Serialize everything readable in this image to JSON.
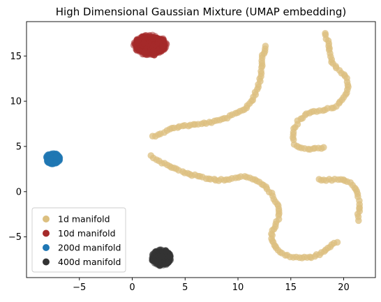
{
  "chart_data": {
    "type": "scatter",
    "title": "High Dimensional Gaussian Mixture (UMAP embedding)",
    "xlabel": "",
    "ylabel": "",
    "xlim": [
      -10,
      23
    ],
    "ylim": [
      -9.5,
      18.8
    ],
    "xticks": [
      -5,
      0,
      5,
      10,
      15,
      20
    ],
    "yticks": [
      -5,
      0,
      5,
      10,
      15
    ],
    "grid": false,
    "legend_position": "lower-left",
    "series": [
      {
        "name": "1d manifold",
        "color": "#DCBF7F",
        "kind": "curve",
        "segments": [
          [
            [
              1.9,
              6.1
            ],
            [
              3.0,
              6.6
            ],
            [
              4.0,
              7.1
            ],
            [
              5.0,
              7.3
            ],
            [
              6.0,
              7.4
            ],
            [
              7.0,
              7.6
            ],
            [
              8.0,
              7.8
            ],
            [
              9.0,
              8.2
            ],
            [
              10.0,
              8.7
            ],
            [
              10.8,
              9.3
            ],
            [
              11.4,
              10.2
            ],
            [
              11.8,
              11.3
            ],
            [
              12.1,
              12.5
            ],
            [
              12.3,
              13.7
            ],
            [
              12.3,
              14.8
            ],
            [
              12.5,
              15.6
            ],
            [
              12.6,
              16.1
            ]
          ],
          [
            [
              1.8,
              3.9
            ],
            [
              2.5,
              3.4
            ],
            [
              3.3,
              2.9
            ],
            [
              4.2,
              2.5
            ],
            [
              5.2,
              2.0
            ],
            [
              6.2,
              1.7
            ],
            [
              7.2,
              1.4
            ],
            [
              8.2,
              1.3
            ],
            [
              9.2,
              1.4
            ],
            [
              10.0,
              1.6
            ],
            [
              10.9,
              1.6
            ],
            [
              11.6,
              1.3
            ],
            [
              12.2,
              0.9
            ],
            [
              12.8,
              0.3
            ],
            [
              13.3,
              -0.5
            ],
            [
              13.7,
              -1.3
            ],
            [
              13.9,
              -2.1
            ],
            [
              13.8,
              -3.0
            ],
            [
              13.5,
              -3.8
            ],
            [
              13.2,
              -4.6
            ],
            [
              13.2,
              -5.4
            ],
            [
              13.5,
              -6.1
            ],
            [
              14.0,
              -6.7
            ],
            [
              14.7,
              -7.1
            ],
            [
              15.5,
              -7.3
            ],
            [
              16.3,
              -7.3
            ],
            [
              17.0,
              -7.2
            ],
            [
              17.7,
              -6.9
            ],
            [
              18.3,
              -6.4
            ],
            [
              18.9,
              -5.9
            ],
            [
              19.4,
              -5.6
            ]
          ],
          [
            [
              18.2,
              17.5
            ],
            [
              18.5,
              16.7
            ],
            [
              18.6,
              15.6
            ],
            [
              18.8,
              14.6
            ],
            [
              19.3,
              13.6
            ],
            [
              20.0,
              13.0
            ],
            [
              20.4,
              12.2
            ],
            [
              20.4,
              11.2
            ],
            [
              19.9,
              10.1
            ],
            [
              19.1,
              9.3
            ],
            [
              18.0,
              9.0
            ],
            [
              17.0,
              8.8
            ],
            [
              16.3,
              8.4
            ],
            [
              15.7,
              7.8
            ],
            [
              15.3,
              6.9
            ],
            [
              15.2,
              6.0
            ],
            [
              15.3,
              5.3
            ],
            [
              15.8,
              4.9
            ],
            [
              16.6,
              4.7
            ],
            [
              17.3,
              4.8
            ],
            [
              18.1,
              4.9
            ]
          ],
          [
            [
              17.6,
              1.3
            ],
            [
              18.4,
              1.3
            ],
            [
              19.2,
              1.3
            ],
            [
              19.9,
              1.3
            ],
            [
              20.6,
              1.0
            ],
            [
              21.0,
              0.5
            ],
            [
              21.3,
              -0.3
            ],
            [
              21.4,
              -1.0
            ],
            [
              21.5,
              -1.7
            ],
            [
              21.4,
              -2.5
            ],
            [
              21.4,
              -3.2
            ]
          ]
        ]
      },
      {
        "name": "10d manifold",
        "color": "#A52A2A",
        "kind": "blob",
        "center": [
          1.7,
          16.2
        ],
        "spread": [
          1.7,
          1.3
        ]
      },
      {
        "name": "200d manifold",
        "color": "#1F77B4",
        "kind": "blob",
        "center": [
          -7.5,
          3.65
        ],
        "spread": [
          0.8,
          0.75
        ]
      },
      {
        "name": "400d manifold",
        "color": "#333333",
        "kind": "blob",
        "center": [
          2.75,
          -7.3
        ],
        "spread": [
          1.05,
          1.05
        ]
      }
    ]
  }
}
